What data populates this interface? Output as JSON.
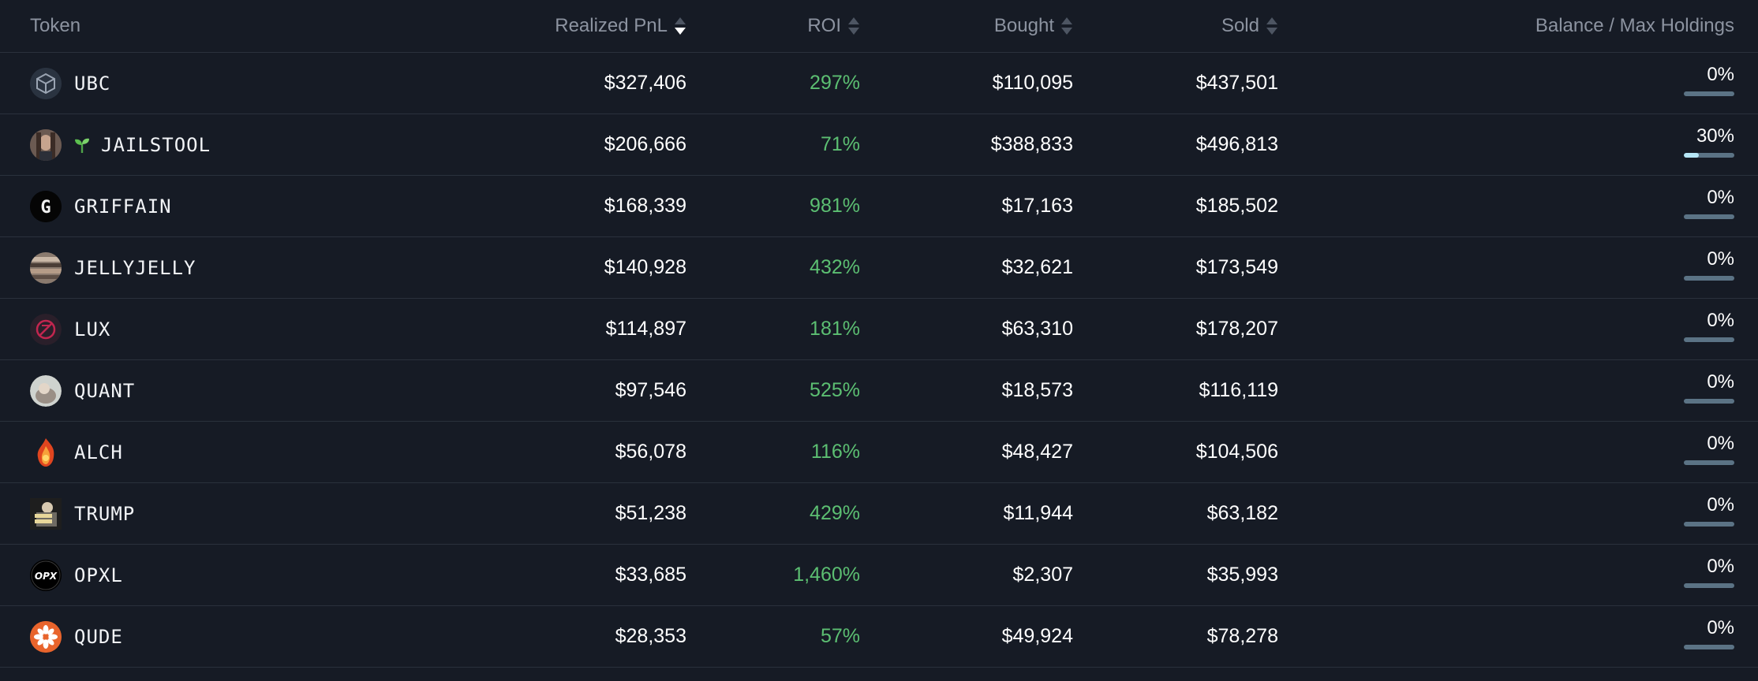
{
  "header": {
    "token": "Token",
    "realized_pnl": "Realized PnL",
    "roi": "ROI",
    "bought": "Bought",
    "sold": "Sold",
    "balance": "Balance / Max Holdings"
  },
  "sort": {
    "active_column": "realized_pnl",
    "direction": "desc"
  },
  "colors": {
    "positive": "#5cbf72",
    "bar_track": "#5b7385",
    "bar_fill": "#b6e6f6",
    "background": "#161b25"
  },
  "rows": [
    {
      "symbol": "UBC",
      "icon": "ubc-cube-icon",
      "pnl": "$327,406",
      "roi": "297%",
      "bought": "$110,095",
      "sold": "$437,501",
      "balance": "0%",
      "balance_fraction": 0
    },
    {
      "symbol": "JAILSTOOL",
      "icon": "jailstool-avatar-icon",
      "pnl": "$206,666",
      "roi": "71%",
      "bought": "$388,833",
      "sold": "$496,813",
      "balance": "30%",
      "balance_fraction": 0.3
    },
    {
      "symbol": "GRIFFAIN",
      "icon": "griffain-g-icon",
      "pnl": "$168,339",
      "roi": "981%",
      "bought": "$17,163",
      "sold": "$185,502",
      "balance": "0%",
      "balance_fraction": 0
    },
    {
      "symbol": "JELLYJELLY",
      "icon": "jellyjelly-photo-icon",
      "pnl": "$140,928",
      "roi": "432%",
      "bought": "$32,621",
      "sold": "$173,549",
      "balance": "0%",
      "balance_fraction": 0
    },
    {
      "symbol": "LUX",
      "icon": "lux-emblem-icon",
      "pnl": "$114,897",
      "roi": "181%",
      "bought": "$63,310",
      "sold": "$178,207",
      "balance": "0%",
      "balance_fraction": 0
    },
    {
      "symbol": "QUANT",
      "icon": "quant-photo-icon",
      "pnl": "$97,546",
      "roi": "525%",
      "bought": "$18,573",
      "sold": "$116,119",
      "balance": "0%",
      "balance_fraction": 0
    },
    {
      "symbol": "ALCH",
      "icon": "alch-flame-icon",
      "pnl": "$56,078",
      "roi": "116%",
      "bought": "$48,427",
      "sold": "$104,506",
      "balance": "0%",
      "balance_fraction": 0
    },
    {
      "symbol": "TRUMP",
      "icon": "trump-fight-icon",
      "pnl": "$51,238",
      "roi": "429%",
      "bought": "$11,944",
      "sold": "$63,182",
      "balance": "0%",
      "balance_fraction": 0
    },
    {
      "symbol": "OPXL",
      "icon": "opxl-logo-icon",
      "pnl": "$33,685",
      "roi": "1,460%",
      "bought": "$2,307",
      "sold": "$35,993",
      "balance": "0%",
      "balance_fraction": 0
    },
    {
      "symbol": "QUDE",
      "icon": "qude-flower-icon",
      "pnl": "$28,353",
      "roi": "57%",
      "bought": "$49,924",
      "sold": "$78,278",
      "balance": "0%",
      "balance_fraction": 0
    }
  ]
}
